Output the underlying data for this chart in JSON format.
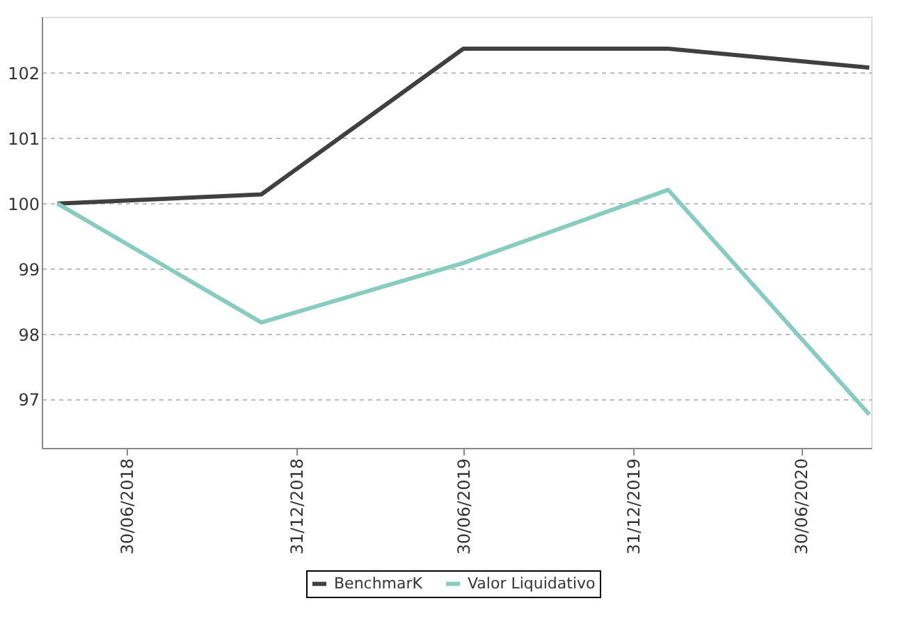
{
  "chart_data": {
    "type": "line",
    "x": [
      "2018-04-16",
      "2018-11-23",
      "2019-06-30",
      "2020-02-07",
      "2020-09-12"
    ],
    "series": [
      {
        "name": "BenchmarK",
        "color": "#404040",
        "values": [
          100.0,
          100.14,
          102.37,
          102.37,
          102.08
        ]
      },
      {
        "name": "Valor Liquidativo",
        "color": "#88cbbf",
        "values": [
          100.0,
          98.18,
          99.09,
          100.21,
          96.77
        ]
      }
    ],
    "xlim": [
      "2018-03-30",
      "2020-09-14"
    ],
    "xticks": [
      {
        "value": "2018-06-30",
        "label": "30/06/2018"
      },
      {
        "value": "2018-12-31",
        "label": "31/12/2018"
      },
      {
        "value": "2019-06-30",
        "label": "30/06/2019"
      },
      {
        "value": "2019-12-31",
        "label": "31/12/2019"
      },
      {
        "value": "2020-06-30",
        "label": "30/06/2020"
      }
    ],
    "ylim": [
      96.26,
      102.86
    ],
    "yticks": [
      97,
      98,
      99,
      100,
      101,
      102
    ],
    "grid": "y",
    "legend": "bottom",
    "marker": "none",
    "line_style": "solid"
  }
}
